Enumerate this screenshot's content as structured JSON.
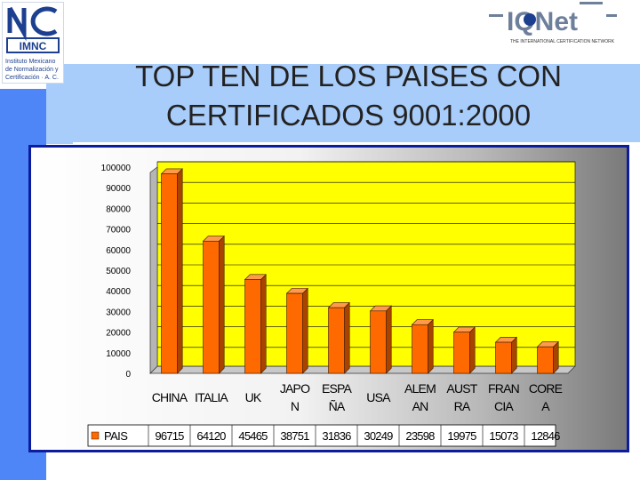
{
  "slide": {
    "title_line1": "TOP TEN DE LOS PAISES CON",
    "title_line2": "CERTIFICADOS 9001:2000"
  },
  "logos": {
    "imnc": {
      "name": "IMNC",
      "lines": [
        "Instituto Mexicano",
        "de Normalización y",
        "Certificación · A. C."
      ]
    },
    "iqnet": {
      "name": "IQNet",
      "tagline": "THE INTERNATIONAL CERTIFICATION NETWORK"
    }
  },
  "colors": {
    "bar": "#ff6a00",
    "plot_bg": "#ffff00",
    "frame": "#0c1c9c",
    "accent_blue": "#4f86f7",
    "light_blue": "#a9cdfb"
  },
  "chart_data": {
    "type": "bar",
    "categories": [
      [
        "CHINA"
      ],
      [
        "ITALIA"
      ],
      [
        "UK"
      ],
      [
        "JAPO",
        "N"
      ],
      [
        "ESPA",
        "ÑA"
      ],
      [
        "USA"
      ],
      [
        "ALEM",
        "AN"
      ],
      [
        "AUST",
        "RA"
      ],
      [
        "FRAN",
        "CIA"
      ],
      [
        "CORE",
        "A"
      ]
    ],
    "series": [
      {
        "name": "PAIS",
        "values": [
          96715,
          64120,
          45465,
          38751,
          31836,
          30249,
          23598,
          19975,
          15073,
          12846
        ]
      }
    ],
    "ylim": [
      0,
      100000
    ],
    "yticks": [
      "0",
      "10000",
      "20000",
      "30000",
      "40000",
      "50000",
      "60000",
      "70000",
      "80000",
      "90000",
      "100000"
    ],
    "grid": true,
    "data_table": true
  }
}
